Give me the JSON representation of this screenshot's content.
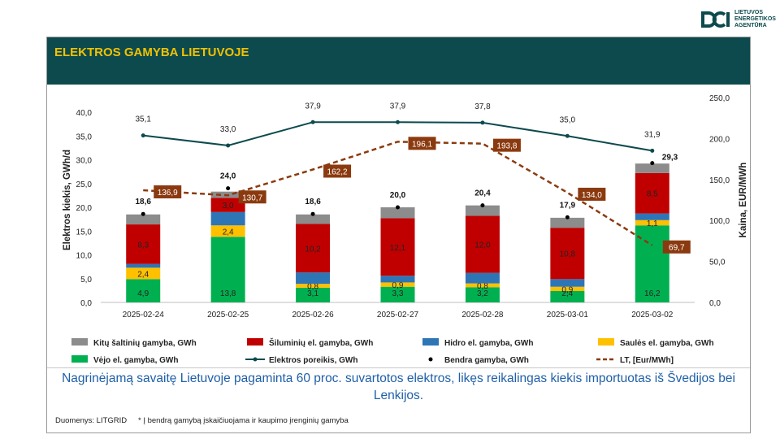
{
  "logo": {
    "line1": "LIETUVOS",
    "line2": "ENERGETIKOS",
    "line3": "AGENTŪRA"
  },
  "header": {
    "title": "ELEKTROS GAMYBA LIETUVOJE"
  },
  "summary": "Nagrinėjamą savaitę Lietuvoje pagaminta 60 proc. suvartotos elektros, likęs reikalingas kiekis importuotas iš Švedijos bei Lenkijos.",
  "source": "Duomenys: LITGRID",
  "footnote": "* Į bendrą gamybą įskaičiuojama ir kaupimo įrenginių gamyba",
  "colors": {
    "header_bg": "#0c4a4e",
    "title": "#f2c200",
    "kiti": "#8c8c8c",
    "siluminiu": "#c00000",
    "hidro": "#2e75b6",
    "saules": "#ffc000",
    "vejo": "#00b050",
    "demand": "#0c4a4e",
    "price": "#8b3a0f",
    "total": "#000000"
  },
  "chart_data": {
    "type": "bar",
    "stacked": true,
    "categories": [
      "2025-02-24",
      "2025-02-25",
      "2025-02-26",
      "2025-02-27",
      "2025-02-28",
      "2025-03-01",
      "2025-03-02"
    ],
    "ylabel": "Elektros kiekis, GWh/d",
    "y2label": "Kaina, EUR/MWh",
    "ylim": [
      0,
      40
    ],
    "y2lim": [
      0,
      250
    ],
    "yticks": [
      "0,0",
      "5,0",
      "10,0",
      "15,0",
      "20,0",
      "25,0",
      "30,0",
      "35,0",
      "40,0"
    ],
    "y2ticks": [
      "0,0",
      "50,0",
      "100,0",
      "150,0",
      "200,0",
      "250,0"
    ],
    "series": [
      {
        "key": "vejo",
        "name": "Vėjo el. gamyba, GWh",
        "values": [
          4.9,
          13.8,
          3.1,
          3.3,
          3.2,
          2.4,
          16.2
        ],
        "labels": [
          "4,9",
          "13,8",
          "3,1",
          "3,3",
          "3,2",
          "2,4",
          "16,2"
        ]
      },
      {
        "key": "saules",
        "name": "Saulės el. gamyba, GWh",
        "values": [
          2.4,
          2.4,
          0.8,
          0.9,
          0.8,
          0.9,
          1.1
        ],
        "labels": [
          "2,4",
          "2,4",
          "0,8",
          "0,9",
          "0,8",
          "0,9",
          "1,1"
        ]
      },
      {
        "key": "hidro",
        "name": "Hidro el. gamyba, GWh",
        "values": [
          0.8,
          2.8,
          2.4,
          1.4,
          2.2,
          1.6,
          1.4
        ],
        "labels": [
          "",
          "",
          "",
          "",
          "",
          "",
          ""
        ]
      },
      {
        "key": "siluminiu",
        "name": "Šiluminių el. gamyba, GWh",
        "values": [
          8.3,
          3.0,
          10.2,
          12.1,
          12.0,
          10.8,
          8.5
        ],
        "labels": [
          "8,3",
          "3,0",
          "10,2",
          "12,1",
          "12,0",
          "10,8",
          "8,5"
        ]
      },
      {
        "key": "kiti",
        "name": "Kitų šaltinių gamyba,  GWh",
        "values": [
          2.1,
          1.3,
          2.0,
          2.3,
          2.2,
          2.1,
          2.0
        ],
        "labels": [
          "",
          "",
          "",
          "",
          "",
          "",
          ""
        ]
      }
    ],
    "total": {
      "name": "Bendra gamyba, GWh",
      "values": [
        18.6,
        24.0,
        18.6,
        20.0,
        20.4,
        17.9,
        29.3
      ],
      "labels": [
        "18,6",
        "24,0",
        "18,6",
        "20,0",
        "20,4",
        "17,9",
        "29,3"
      ]
    },
    "demand": {
      "name": "Elektros poreikis, GWh",
      "values": [
        35.1,
        33.0,
        37.9,
        37.9,
        37.8,
        35.0,
        31.9
      ],
      "labels": [
        "35,1",
        "33,0",
        "37,9",
        "37,9",
        "37,8",
        "35,0",
        "31,9"
      ]
    },
    "price": {
      "name": "LT, [Eur/MWh]",
      "values": [
        136.9,
        130.7,
        162.2,
        196.1,
        193.8,
        134.0,
        69.7
      ],
      "labels": [
        "136,9",
        "130,7",
        "162,2",
        "196,1",
        "193,8",
        "134,0",
        "69,7"
      ]
    }
  }
}
